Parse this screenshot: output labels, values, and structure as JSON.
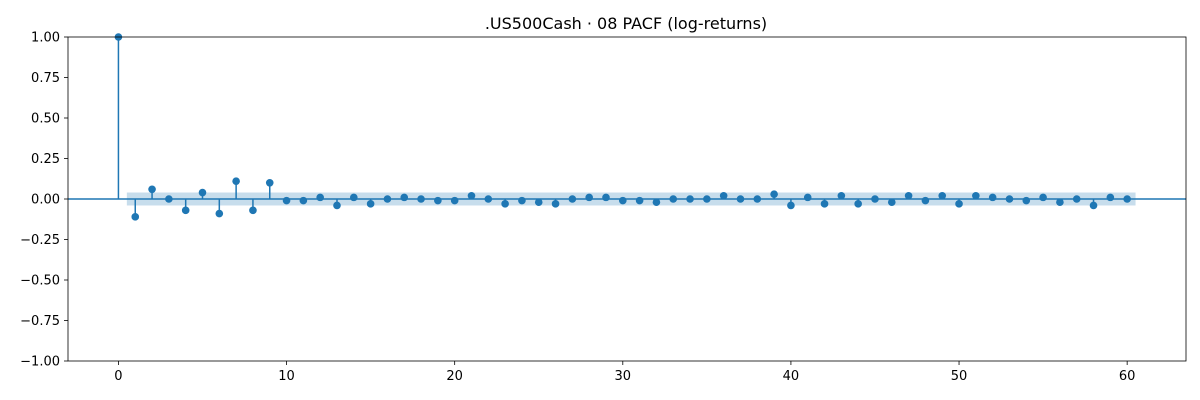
{
  "chart_data": {
    "type": "scatter",
    "subtype": "pacf-stem",
    "title": ".US500Cash · 08 PACF (log-returns)",
    "xlabel": "",
    "ylabel": "",
    "xlim": [
      -3,
      63.5
    ],
    "ylim": [
      -1.0,
      1.0
    ],
    "xticks": [
      0,
      10,
      20,
      30,
      40,
      50,
      60
    ],
    "xtick_labels": [
      "0",
      "10",
      "20",
      "30",
      "40",
      "50",
      "60"
    ],
    "yticks": [
      -1.0,
      -0.75,
      -0.5,
      -0.25,
      0.0,
      0.25,
      0.5,
      0.75,
      1.0
    ],
    "ytick_labels": [
      "−1.00",
      "−0.75",
      "−0.50",
      "−0.25",
      "0.00",
      "0.25",
      "0.50",
      "0.75",
      "1.00"
    ],
    "grid": false,
    "confidence_band": {
      "from_lag": 0.5,
      "to_lag": 60.5,
      "half_width": 0.04,
      "color": "#1f77b4",
      "opacity": 0.25
    },
    "zero_line_color": "#1f77b4",
    "marker_color": "#1f77b4",
    "series": [
      {
        "lags": [
          0,
          1,
          2,
          3,
          4,
          5,
          6,
          7,
          8,
          9,
          10,
          11,
          12,
          13,
          14,
          15,
          16,
          17,
          18,
          19,
          20,
          21,
          22,
          23,
          24,
          25,
          26,
          27,
          28,
          29,
          30,
          31,
          32,
          33,
          34,
          35,
          36,
          37,
          38,
          39,
          40,
          41,
          42,
          43,
          44,
          45,
          46,
          47,
          48,
          49,
          50,
          51,
          52,
          53,
          54,
          55,
          56,
          57,
          58,
          59,
          60
        ],
        "values": [
          1.0,
          -0.11,
          0.06,
          0.0,
          -0.07,
          0.04,
          -0.09,
          0.11,
          -0.07,
          0.1,
          -0.01,
          -0.01,
          0.01,
          -0.04,
          0.01,
          -0.03,
          0.0,
          0.01,
          0.0,
          -0.01,
          -0.01,
          0.02,
          0.0,
          -0.03,
          -0.01,
          -0.02,
          -0.03,
          0.0,
          0.01,
          0.01,
          -0.01,
          -0.01,
          -0.02,
          0.0,
          0.0,
          0.0,
          0.02,
          0.0,
          0.0,
          0.03,
          -0.04,
          0.01,
          -0.03,
          0.02,
          -0.03,
          0.0,
          -0.02,
          0.02,
          -0.01,
          0.02,
          -0.03,
          0.02,
          0.01,
          0.0,
          -0.01,
          0.01,
          -0.02,
          0.0,
          -0.04,
          0.01,
          0.0
        ]
      }
    ]
  }
}
